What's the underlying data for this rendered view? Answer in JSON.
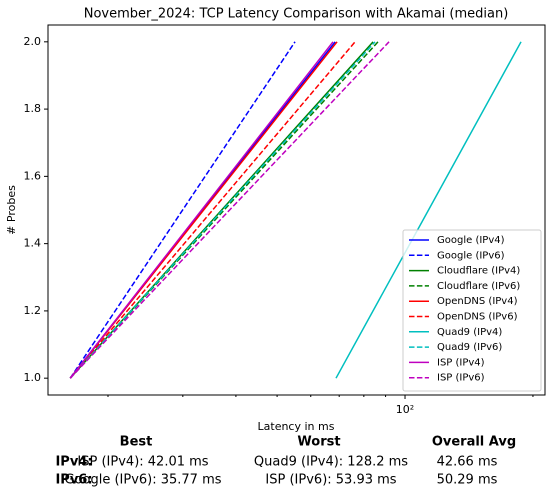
{
  "chart_data": {
    "type": "line",
    "title": "November_2024: TCP Latency Comparison with Akamai (median)",
    "xlabel": "Latency in ms",
    "ylabel": "# Probes",
    "xscale": "log",
    "xlim": [
      14.45,
      213.5
    ],
    "ylim": [
      0.95,
      2.05
    ],
    "xticks": [
      {
        "value": 100,
        "label": "10²"
      }
    ],
    "xminorticks": [
      20,
      30,
      40,
      50,
      60,
      70,
      80,
      90,
      200
    ],
    "yticks": [
      {
        "value": 1,
        "label": "1.0"
      },
      {
        "value": 1.2,
        "label": "1.2"
      },
      {
        "value": 1.4,
        "label": "1.4"
      },
      {
        "value": 1.6,
        "label": "1.6"
      },
      {
        "value": 1.8,
        "label": "1.8"
      },
      {
        "value": 2,
        "label": "2.0"
      }
    ],
    "legend": "lower right",
    "series": [
      {
        "name": "Google (IPv4)",
        "color": "#0000ff",
        "linestyle": "solid",
        "x": [
          16.3,
          68.5
        ],
        "values": [
          1,
          2
        ]
      },
      {
        "name": "Google (IPv6)",
        "color": "#0000ff",
        "linestyle": "dashed",
        "x": [
          16.3,
          55.1
        ],
        "values": [
          1,
          2
        ]
      },
      {
        "name": "Cloudflare (IPv4)",
        "color": "#008000",
        "linestyle": "solid",
        "x": [
          16.3,
          84.1
        ],
        "values": [
          1,
          2
        ]
      },
      {
        "name": "Cloudflare (IPv6)",
        "color": "#008000",
        "linestyle": "dashed",
        "x": [
          16.3,
          86.4
        ],
        "values": [
          1,
          2
        ]
      },
      {
        "name": "OpenDNS (IPv4)",
        "color": "#ff0000",
        "linestyle": "solid",
        "x": [
          16.3,
          69.2
        ],
        "values": [
          1,
          2
        ]
      },
      {
        "name": "OpenDNS (IPv6)",
        "color": "#ff0000",
        "linestyle": "dashed",
        "x": [
          16.3,
          76.3
        ],
        "values": [
          1,
          2
        ]
      },
      {
        "name": "Quad9 (IPv4)",
        "color": "#00bfbf",
        "linestyle": "solid",
        "x": [
          68.8,
          187.5
        ],
        "values": [
          1,
          2
        ]
      },
      {
        "name": "Quad9 (IPv6)",
        "color": "#00bfbf",
        "linestyle": "dashed",
        "x": [
          16.3,
          85
        ],
        "values": [
          1,
          2
        ]
      },
      {
        "name": "ISP (IPv4)",
        "color": "#bf00bf",
        "linestyle": "solid",
        "x": [
          16.3,
          67.7
        ],
        "values": [
          1,
          2
        ]
      },
      {
        "name": "ISP (IPv6)",
        "color": "#bf00bf",
        "linestyle": "dashed",
        "x": [
          16.3,
          91.7
        ],
        "values": [
          1,
          2
        ]
      }
    ]
  },
  "summary": {
    "headers": [
      "Best",
      "Worst",
      "Overall Avg"
    ],
    "rows": [
      {
        "label": "IPv4:",
        "cells": [
          "ISP (IPv4): 42.01 ms",
          "Quad9 (IPv4): 128.2 ms",
          "42.66 ms"
        ]
      },
      {
        "label": "IPv6:",
        "cells": [
          "Google (IPv6): 35.77 ms",
          "ISP (IPv6): 53.93 ms",
          "50.29 ms"
        ]
      }
    ]
  }
}
